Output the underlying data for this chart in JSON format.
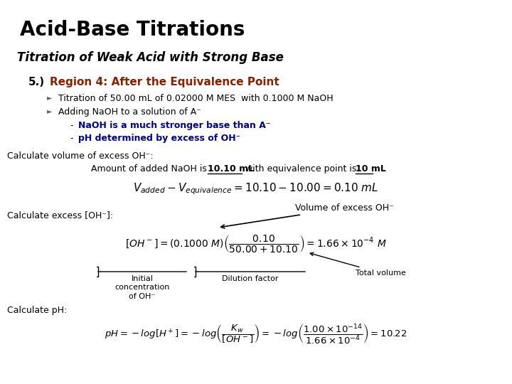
{
  "bg": "#ffffff",
  "title": "Acid-Base Titrations",
  "subtitle": "Titration of Weak Acid with Strong Base",
  "section_num": "5.)",
  "region_title": "Region 4: After the Equivalence Point",
  "region_color": "#8B2000",
  "bullet1": "Titration of 50.00 mL of 0.02000 M MES  with 0.1000 M NaOH",
  "bullet2": "Adding NaOH to a solution of A⁻",
  "sub1": "NaOH is a much stronger base than A⁻",
  "sub2": "pH determined by excess of OH⁻",
  "sub_color": "#00008B",
  "lbl_vol": "Calculate volume of excess OH⁻:",
  "naoh_pre": "Amount of added NaOH is ",
  "naoh_val1": "10.10 mL",
  "naoh_mid": " with equivalence point is ",
  "naoh_val2": "10 mL",
  "eq1": "$V_{added} - V_{equivalence} = 10.10 - 10.00 = 0.10\\ mL$",
  "lbl_oh": "Calculate excess [OH⁻]:",
  "vol_excess_label": "Volume of excess OH⁻",
  "eq_oh": "$[OH^-] = \\left(0.1000\\ M\\right)\\left(\\dfrac{0.10}{50.00 + 10.10}\\right) = 1.66 \\times 10^{-4}\\ M$",
  "lbl_init": "Initial\nconcentration\nof OH⁻",
  "lbl_dil": "Dilution factor",
  "lbl_tvol": "Total volume",
  "lbl_ph": "Calculate pH:",
  "eq_ph": "$pH = -log[H^+] = -log\\left(\\dfrac{K_w}{[OH^-]}\\right) = -log\\left(\\dfrac{1.00 \\times 10^{-14}}{1.66 \\times 10^{-4}}\\right) = 10.22$"
}
